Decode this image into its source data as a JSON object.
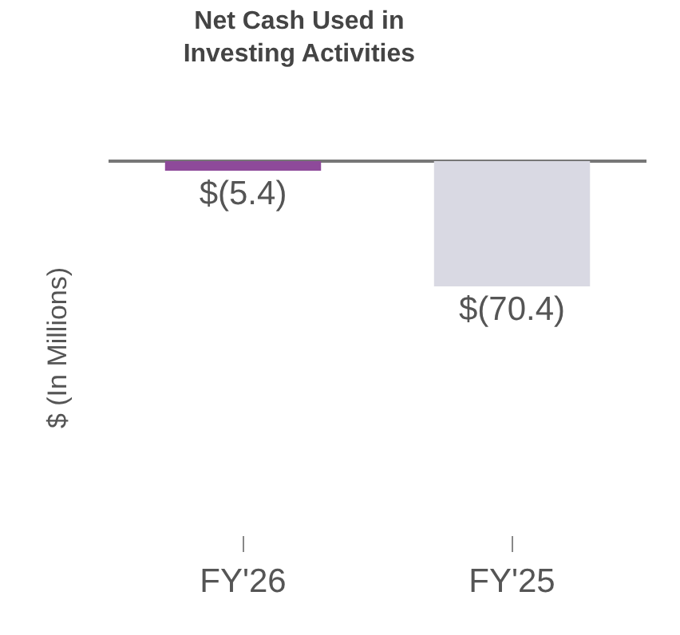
{
  "chart_data": {
    "type": "bar",
    "title": "Net Cash Used in\nInvesting Activities",
    "ylabel": "$ (In Millions)",
    "categories": [
      "FY'26",
      "FY'25"
    ],
    "values": [
      -5.4,
      -70.4
    ],
    "colors": [
      "#8e4a9a",
      "#d9d9e3"
    ],
    "value_labels": [
      "$(5.4)",
      "$(70.4)"
    ]
  }
}
